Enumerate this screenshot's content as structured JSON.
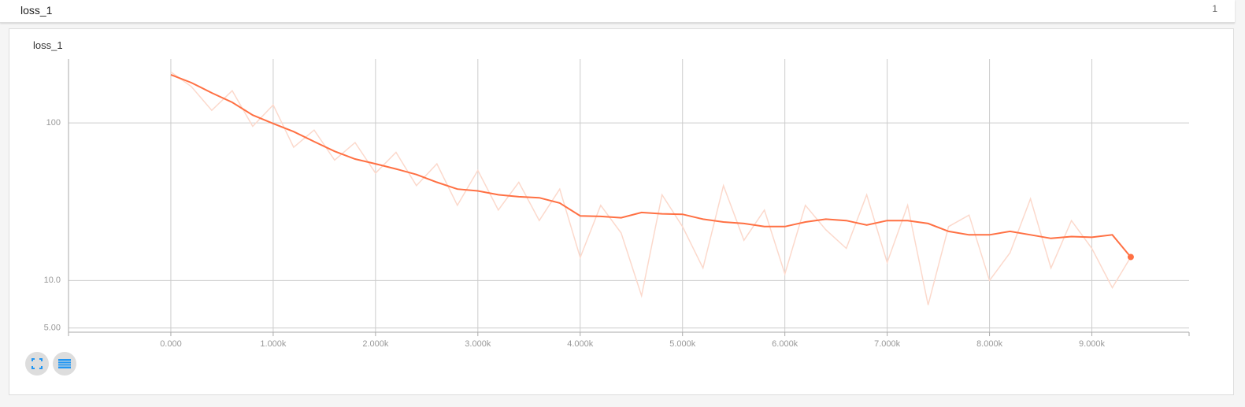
{
  "header": {
    "title": "loss_1",
    "count": 1
  },
  "chart_data": {
    "type": "line",
    "title": "loss_1",
    "log_y": true,
    "grid": true,
    "x": [
      0,
      200,
      400,
      600,
      800,
      1000,
      1200,
      1400,
      1600,
      1800,
      2000,
      2200,
      2400,
      2600,
      2800,
      3000,
      3200,
      3400,
      3600,
      3800,
      4000,
      4200,
      4400,
      4600,
      4800,
      5000,
      5200,
      5400,
      5600,
      5800,
      6000,
      6200,
      6400,
      6600,
      6800,
      7000,
      7200,
      7400,
      7600,
      7800,
      8000,
      8200,
      8400,
      8600,
      8800,
      9000,
      9200,
      9380
    ],
    "series": [
      {
        "color": "#fcd9cc",
        "values": [
          210,
          170,
          120,
          160,
          95,
          130,
          70,
          90,
          58,
          75,
          48,
          65,
          40,
          55,
          30,
          50,
          28,
          42,
          24,
          38,
          14,
          30,
          20,
          8,
          35,
          22,
          12,
          40,
          18,
          28,
          11,
          30,
          21,
          16,
          35,
          13,
          30,
          7,
          22,
          26,
          10,
          15,
          33,
          12,
          24,
          16,
          9,
          14.1
        ]
      },
      {
        "color": "#ff7043",
        "values": [
          202,
          180,
          155,
          135,
          112,
          99,
          88,
          76,
          66,
          59,
          55,
          51,
          47,
          42,
          38,
          37,
          35,
          34,
          33.5,
          31,
          25.7,
          25.5,
          25,
          27,
          26.5,
          26.3,
          24.5,
          23.5,
          23,
          22,
          22,
          23.5,
          24.5,
          24,
          22.5,
          24,
          24,
          23,
          20.5,
          19.5,
          19.5,
          20.5,
          19.5,
          18.5,
          19,
          18.8,
          19.5,
          14.1
        ]
      }
    ],
    "xlim": [
      -1000,
      9950
    ],
    "ylim": [
      4.7,
      254
    ],
    "xticks": [
      {
        "value": 0,
        "label": "0.000"
      },
      {
        "value": 1000,
        "label": "1.000k"
      },
      {
        "value": 2000,
        "label": "2.000k"
      },
      {
        "value": 3000,
        "label": "3.000k"
      },
      {
        "value": 4000,
        "label": "4.000k"
      },
      {
        "value": 5000,
        "label": "5.000k"
      },
      {
        "value": 6000,
        "label": "6.000k"
      },
      {
        "value": 7000,
        "label": "7.000k"
      },
      {
        "value": 8000,
        "label": "8.000k"
      },
      {
        "value": 9000,
        "label": "9.000k"
      }
    ],
    "yticks": [
      {
        "value": 5,
        "label": "5.00"
      },
      {
        "value": 10,
        "label": "10.0"
      },
      100
    ]
  }
}
